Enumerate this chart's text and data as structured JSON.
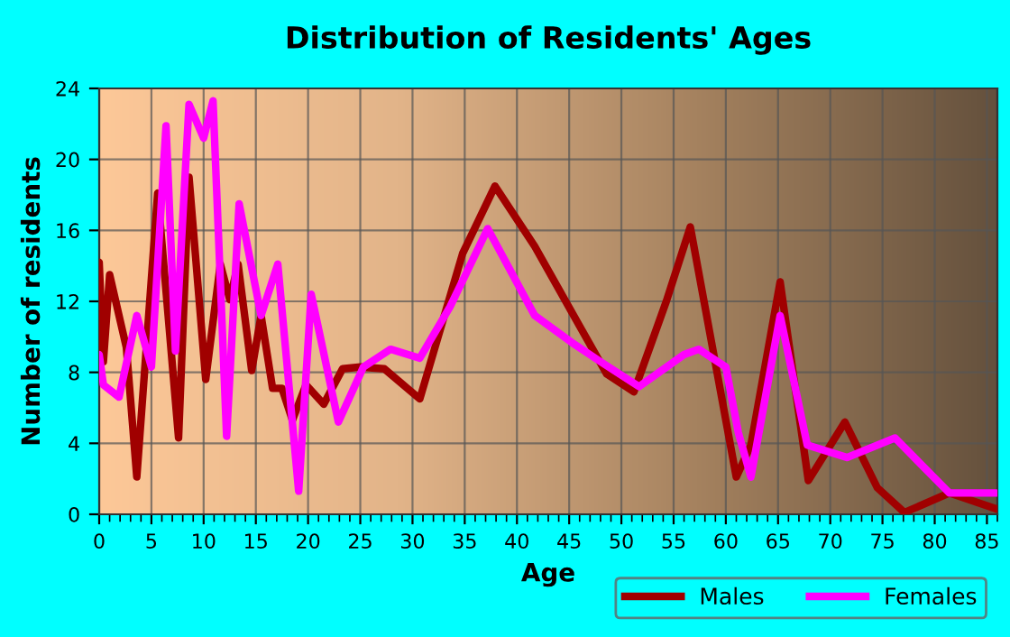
{
  "chart_data": {
    "type": "line",
    "title": "Distribution of Residents' Ages",
    "xlabel": "Age",
    "ylabel": "Number of residents",
    "xlim": [
      0,
      86
    ],
    "xticks": [
      0,
      5,
      10,
      15,
      20,
      25,
      30,
      35,
      40,
      45,
      50,
      55,
      60,
      65,
      70,
      75,
      80,
      85
    ],
    "ylim": [
      0,
      24
    ],
    "yticks": [
      0,
      4,
      8,
      12,
      16,
      20,
      24
    ],
    "grid": true,
    "legend": "bottom right",
    "marker": "none",
    "line_style": "solid",
    "series": [
      {
        "name": "Males",
        "color": "#a00000",
        "x": [
          0,
          0.4,
          1,
          2.6,
          3.6,
          5.6,
          7.6,
          8.6,
          10.2,
          11.6,
          12.5,
          13.3,
          14.6,
          15.5,
          16.6,
          17.5,
          18.5,
          19.8,
          21.5,
          23.3,
          25,
          27.3,
          30.7,
          34.8,
          37.9,
          41.7,
          46.2,
          48.6,
          51.2,
          54.3,
          56.6,
          61,
          62.4,
          65.2,
          67.9,
          71.4,
          74.5,
          77.1,
          81.4,
          85.9
        ],
        "values": [
          14.2,
          8.6,
          13.5,
          9.4,
          2.1,
          18.1,
          4.3,
          19,
          7.6,
          14.1,
          12.1,
          14.1,
          8.1,
          11.2,
          7.1,
          7.1,
          5.3,
          7.3,
          6.2,
          8.2,
          8.3,
          8.2,
          6.5,
          14.7,
          18.5,
          15.1,
          10.4,
          7.9,
          6.9,
          12,
          16.2,
          2.1,
          3.9,
          13.1,
          1.9,
          5.2,
          1.5,
          0.1,
          1.2,
          0.3
        ]
      },
      {
        "name": "Females",
        "color": "#ff00ff",
        "x": [
          0,
          0.4,
          1.9,
          3.6,
          5,
          6.4,
          7.3,
          8.6,
          10,
          10.9,
          12.2,
          13.4,
          15.5,
          17.1,
          19.1,
          20.3,
          22.9,
          25.3,
          27.9,
          30.7,
          33.6,
          37.2,
          41.7,
          45.2,
          48,
          51.7,
          56,
          57.4,
          60,
          61.2,
          62.4,
          65.2,
          67.8,
          71.6,
          76.2,
          81.4,
          85.9
        ],
        "values": [
          9.0,
          7.3,
          6.6,
          11.2,
          8.3,
          21.9,
          9.2,
          23.1,
          21.2,
          23.3,
          4.4,
          17.5,
          11.2,
          14.1,
          1.3,
          12.4,
          5.2,
          8.3,
          9.3,
          8.8,
          11.7,
          16.1,
          11.2,
          9.7,
          8.6,
          7.2,
          9.0,
          9.3,
          8.3,
          4.6,
          2.1,
          11.2,
          3.9,
          3.2,
          4.3,
          1.2,
          1.2
        ]
      }
    ]
  }
}
